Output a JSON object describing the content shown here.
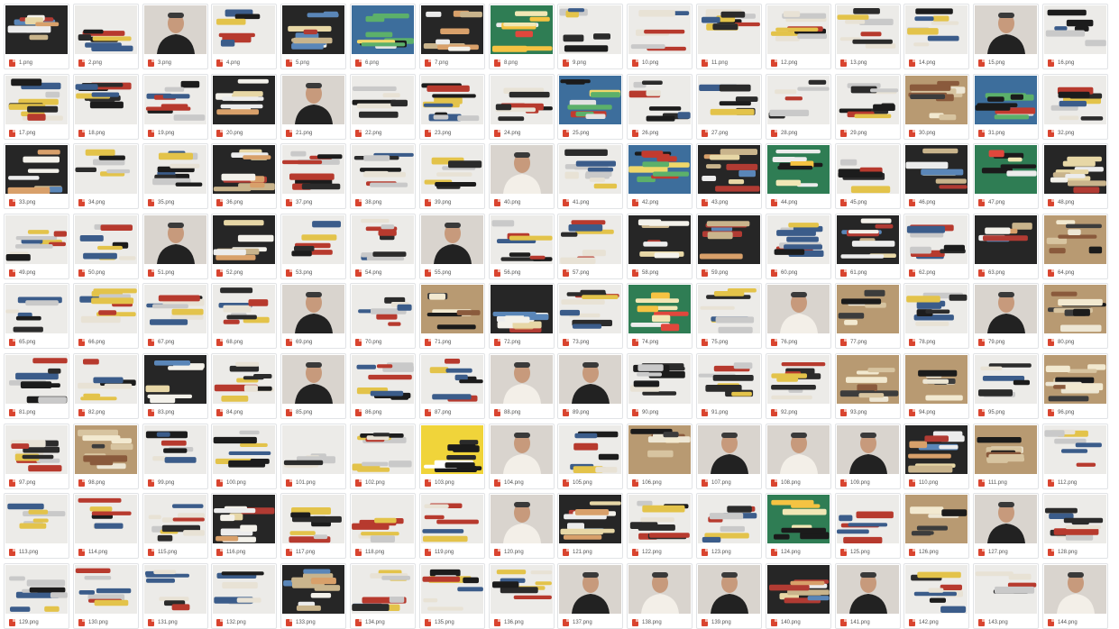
{
  "gallery": {
    "files": [
      {
        "name": "1.png",
        "scene": "socks-dark"
      },
      {
        "name": "2.png",
        "scene": "socks-light"
      },
      {
        "name": "3.png",
        "scene": "person"
      },
      {
        "name": "4.png",
        "scene": "socks-light"
      },
      {
        "name": "5.png",
        "scene": "socks-dark"
      },
      {
        "name": "6.png",
        "scene": "socks-blue"
      },
      {
        "name": "7.png",
        "scene": "socks-dark"
      },
      {
        "name": "8.png",
        "scene": "socks-green"
      },
      {
        "name": "9.png",
        "scene": "socks-light"
      },
      {
        "name": "10.png",
        "scene": "socks-light"
      },
      {
        "name": "11.png",
        "scene": "socks-light"
      },
      {
        "name": "12.png",
        "scene": "socks-light"
      },
      {
        "name": "13.png",
        "scene": "socks-light"
      },
      {
        "name": "14.png",
        "scene": "socks-light"
      },
      {
        "name": "15.png",
        "scene": "person"
      },
      {
        "name": "16.png",
        "scene": "socks-light"
      },
      {
        "name": "17.png",
        "scene": "socks-light"
      },
      {
        "name": "18.png",
        "scene": "socks-light"
      },
      {
        "name": "19.png",
        "scene": "socks-light"
      },
      {
        "name": "20.png",
        "scene": "socks-dark"
      },
      {
        "name": "21.png",
        "scene": "person"
      },
      {
        "name": "22.png",
        "scene": "socks-light"
      },
      {
        "name": "23.png",
        "scene": "socks-light"
      },
      {
        "name": "24.png",
        "scene": "socks-light"
      },
      {
        "name": "25.png",
        "scene": "socks-blue"
      },
      {
        "name": "26.png",
        "scene": "socks-light"
      },
      {
        "name": "27.png",
        "scene": "socks-light"
      },
      {
        "name": "28.png",
        "scene": "socks-light"
      },
      {
        "name": "29.png",
        "scene": "socks-light"
      },
      {
        "name": "30.png",
        "scene": "socks-tan"
      },
      {
        "name": "31.png",
        "scene": "socks-blue"
      },
      {
        "name": "32.png",
        "scene": "socks-light"
      },
      {
        "name": "33.png",
        "scene": "socks-dark"
      },
      {
        "name": "34.png",
        "scene": "socks-light"
      },
      {
        "name": "35.png",
        "scene": "socks-light"
      },
      {
        "name": "36.png",
        "scene": "socks-dark"
      },
      {
        "name": "37.png",
        "scene": "socks-light"
      },
      {
        "name": "38.png",
        "scene": "socks-light"
      },
      {
        "name": "39.png",
        "scene": "socks-light"
      },
      {
        "name": "40.png",
        "scene": "person"
      },
      {
        "name": "41.png",
        "scene": "socks-light"
      },
      {
        "name": "42.png",
        "scene": "socks-blue"
      },
      {
        "name": "43.png",
        "scene": "socks-dark"
      },
      {
        "name": "44.png",
        "scene": "socks-green"
      },
      {
        "name": "45.png",
        "scene": "socks-light"
      },
      {
        "name": "46.png",
        "scene": "socks-dark"
      },
      {
        "name": "47.png",
        "scene": "socks-green"
      },
      {
        "name": "48.png",
        "scene": "socks-dark"
      },
      {
        "name": "49.png",
        "scene": "socks-light"
      },
      {
        "name": "50.png",
        "scene": "socks-light"
      },
      {
        "name": "51.png",
        "scene": "person"
      },
      {
        "name": "52.png",
        "scene": "socks-dark"
      },
      {
        "name": "53.png",
        "scene": "socks-light"
      },
      {
        "name": "54.png",
        "scene": "socks-light"
      },
      {
        "name": "55.png",
        "scene": "person"
      },
      {
        "name": "56.png",
        "scene": "socks-light"
      },
      {
        "name": "57.png",
        "scene": "socks-light"
      },
      {
        "name": "58.png",
        "scene": "socks-dark"
      },
      {
        "name": "59.png",
        "scene": "socks-dark"
      },
      {
        "name": "60.png",
        "scene": "socks-light"
      },
      {
        "name": "61.png",
        "scene": "socks-dark"
      },
      {
        "name": "62.png",
        "scene": "socks-light"
      },
      {
        "name": "63.png",
        "scene": "socks-dark"
      },
      {
        "name": "64.png",
        "scene": "socks-tan"
      },
      {
        "name": "65.png",
        "scene": "socks-light"
      },
      {
        "name": "66.png",
        "scene": "socks-light"
      },
      {
        "name": "67.png",
        "scene": "socks-light"
      },
      {
        "name": "68.png",
        "scene": "socks-light"
      },
      {
        "name": "69.png",
        "scene": "person"
      },
      {
        "name": "70.png",
        "scene": "socks-light"
      },
      {
        "name": "71.png",
        "scene": "socks-tan"
      },
      {
        "name": "72.png",
        "scene": "socks-dark"
      },
      {
        "name": "73.png",
        "scene": "socks-light"
      },
      {
        "name": "74.png",
        "scene": "socks-green"
      },
      {
        "name": "75.png",
        "scene": "socks-light"
      },
      {
        "name": "76.png",
        "scene": "person"
      },
      {
        "name": "77.png",
        "scene": "socks-tan"
      },
      {
        "name": "78.png",
        "scene": "socks-light"
      },
      {
        "name": "79.png",
        "scene": "person"
      },
      {
        "name": "80.png",
        "scene": "socks-tan"
      },
      {
        "name": "81.png",
        "scene": "socks-light"
      },
      {
        "name": "82.png",
        "scene": "socks-light"
      },
      {
        "name": "83.png",
        "scene": "socks-dark"
      },
      {
        "name": "84.png",
        "scene": "socks-light"
      },
      {
        "name": "85.png",
        "scene": "person"
      },
      {
        "name": "86.png",
        "scene": "socks-light"
      },
      {
        "name": "87.png",
        "scene": "socks-light"
      },
      {
        "name": "88.png",
        "scene": "person"
      },
      {
        "name": "89.png",
        "scene": "person"
      },
      {
        "name": "90.png",
        "scene": "socks-light"
      },
      {
        "name": "91.png",
        "scene": "socks-light"
      },
      {
        "name": "92.png",
        "scene": "socks-light"
      },
      {
        "name": "93.png",
        "scene": "socks-tan"
      },
      {
        "name": "94.png",
        "scene": "socks-tan"
      },
      {
        "name": "95.png",
        "scene": "socks-light"
      },
      {
        "name": "96.png",
        "scene": "socks-tan"
      },
      {
        "name": "97.png",
        "scene": "socks-light"
      },
      {
        "name": "98.png",
        "scene": "socks-tan"
      },
      {
        "name": "99.png",
        "scene": "socks-light"
      },
      {
        "name": "100.png",
        "scene": "socks-light"
      },
      {
        "name": "101.png",
        "scene": "socks-light"
      },
      {
        "name": "102.png",
        "scene": "socks-light"
      },
      {
        "name": "103.png",
        "scene": "socks-yellow"
      },
      {
        "name": "104.png",
        "scene": "person"
      },
      {
        "name": "105.png",
        "scene": "socks-light"
      },
      {
        "name": "106.png",
        "scene": "socks-tan"
      },
      {
        "name": "107.png",
        "scene": "person"
      },
      {
        "name": "108.png",
        "scene": "person"
      },
      {
        "name": "109.png",
        "scene": "person"
      },
      {
        "name": "110.png",
        "scene": "socks-dark"
      },
      {
        "name": "111.png",
        "scene": "socks-tan"
      },
      {
        "name": "112.png",
        "scene": "socks-light"
      },
      {
        "name": "113.png",
        "scene": "socks-light"
      },
      {
        "name": "114.png",
        "scene": "socks-light"
      },
      {
        "name": "115.png",
        "scene": "socks-light"
      },
      {
        "name": "116.png",
        "scene": "socks-dark"
      },
      {
        "name": "117.png",
        "scene": "socks-light"
      },
      {
        "name": "118.png",
        "scene": "socks-light"
      },
      {
        "name": "119.png",
        "scene": "socks-light"
      },
      {
        "name": "120.png",
        "scene": "person"
      },
      {
        "name": "121.png",
        "scene": "socks-dark"
      },
      {
        "name": "122.png",
        "scene": "socks-light"
      },
      {
        "name": "123.png",
        "scene": "socks-light"
      },
      {
        "name": "124.png",
        "scene": "socks-green"
      },
      {
        "name": "125.png",
        "scene": "socks-light"
      },
      {
        "name": "126.png",
        "scene": "socks-tan"
      },
      {
        "name": "127.png",
        "scene": "person"
      },
      {
        "name": "128.png",
        "scene": "socks-light"
      },
      {
        "name": "129.png",
        "scene": "socks-light"
      },
      {
        "name": "130.png",
        "scene": "socks-light"
      },
      {
        "name": "131.png",
        "scene": "socks-light"
      },
      {
        "name": "132.png",
        "scene": "socks-light"
      },
      {
        "name": "133.png",
        "scene": "socks-dark"
      },
      {
        "name": "134.png",
        "scene": "socks-light"
      },
      {
        "name": "135.png",
        "scene": "socks-light"
      },
      {
        "name": "136.png",
        "scene": "socks-light"
      },
      {
        "name": "137.png",
        "scene": "person"
      },
      {
        "name": "138.png",
        "scene": "person"
      },
      {
        "name": "139.png",
        "scene": "person"
      },
      {
        "name": "140.png",
        "scene": "socks-dark"
      },
      {
        "name": "141.png",
        "scene": "person"
      },
      {
        "name": "142.png",
        "scene": "socks-light"
      },
      {
        "name": "143.png",
        "scene": "socks-light"
      },
      {
        "name": "144.png",
        "scene": "person"
      }
    ],
    "colors": {
      "icon": "#d9442f",
      "border": "#e1e3e6",
      "caption": "#555555"
    }
  }
}
